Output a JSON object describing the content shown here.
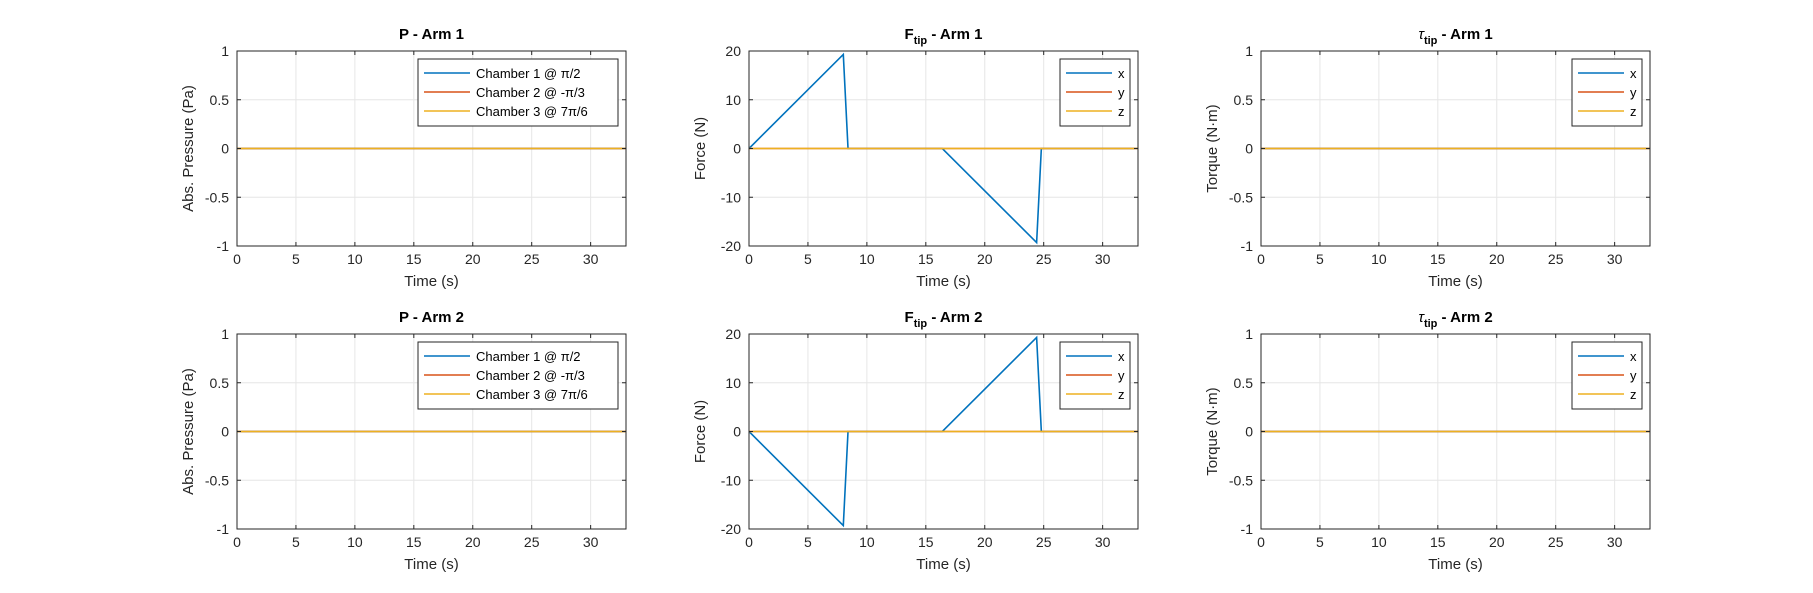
{
  "colors": {
    "x": "#0072BD",
    "y": "#D95319",
    "z": "#EDB120",
    "grid": "#e6e6e6",
    "axes": "#262626"
  },
  "chart_data": [
    {
      "type": "line",
      "title": "P - Arm 1",
      "title_main": "P",
      "title_sub": "",
      "title_suffix": " - Arm 1",
      "xlabel": "Time (s)",
      "ylabel": "Abs. Pressure (Pa)",
      "xlim": [
        0,
        33
      ],
      "ylim": [
        -1,
        1
      ],
      "xticks": [
        0,
        5,
        10,
        15,
        20,
        25,
        30
      ],
      "yticks": [
        -1,
        -0.5,
        0,
        0.5,
        1
      ],
      "yticklabels": [
        "-1",
        "-0.5",
        "0",
        "0.5",
        "1"
      ],
      "grid": true,
      "legend_position": "top-right",
      "series": [
        {
          "name": "Chamber 1 @ π/2",
          "color": "x",
          "x": [
            0,
            33
          ],
          "y": [
            0,
            0
          ]
        },
        {
          "name": "Chamber 2 @ -π/3",
          "color": "y",
          "x": [
            0,
            33
          ],
          "y": [
            0,
            0
          ]
        },
        {
          "name": "Chamber 3 @ 7π/6",
          "color": "z",
          "x": [
            0,
            33
          ],
          "y": [
            0,
            0
          ]
        }
      ]
    },
    {
      "type": "line",
      "title": "Ftip - Arm 1",
      "title_main": "F",
      "title_sub": "tip",
      "title_suffix": " - Arm 1",
      "xlabel": "Time (s)",
      "ylabel": "Force (N)",
      "xlim": [
        0,
        33
      ],
      "ylim": [
        -20,
        20
      ],
      "xticks": [
        0,
        5,
        10,
        15,
        20,
        25,
        30
      ],
      "yticks": [
        -20,
        -10,
        0,
        10,
        20
      ],
      "yticklabels": [
        "-20",
        "-10",
        "0",
        "10",
        "20"
      ],
      "grid": true,
      "legend_position": "top-right",
      "series": [
        {
          "name": "x",
          "color": "x",
          "x": [
            0,
            8,
            8.4,
            16.4,
            24.4,
            24.8,
            33
          ],
          "y": [
            0,
            19.3,
            0,
            0,
            -19.3,
            0,
            0
          ]
        },
        {
          "name": "y",
          "color": "y",
          "x": [
            0,
            33
          ],
          "y": [
            0,
            0
          ]
        },
        {
          "name": "z",
          "color": "z",
          "x": [
            0,
            33
          ],
          "y": [
            0,
            0
          ]
        }
      ]
    },
    {
      "type": "line",
      "title": "τtip - Arm 1",
      "title_main": "τ",
      "title_sub": "tip",
      "title_suffix": " - Arm 1",
      "xlabel": "Time (s)",
      "ylabel": "Torque (N·m)",
      "xlim": [
        0,
        33
      ],
      "ylim": [
        -1,
        1
      ],
      "xticks": [
        0,
        5,
        10,
        15,
        20,
        25,
        30
      ],
      "yticks": [
        -1,
        -0.5,
        0,
        0.5,
        1
      ],
      "yticklabels": [
        "-1",
        "-0.5",
        "0",
        "0.5",
        "1"
      ],
      "grid": true,
      "legend_position": "top-right",
      "series": [
        {
          "name": "x",
          "color": "x",
          "x": [
            0,
            33
          ],
          "y": [
            0,
            0
          ]
        },
        {
          "name": "y",
          "color": "y",
          "x": [
            0,
            33
          ],
          "y": [
            0,
            0
          ]
        },
        {
          "name": "z",
          "color": "z",
          "x": [
            0,
            33
          ],
          "y": [
            0,
            0
          ]
        }
      ]
    },
    {
      "type": "line",
      "title": "P - Arm 2",
      "title_main": "P",
      "title_sub": "",
      "title_suffix": " - Arm 2",
      "xlabel": "Time (s)",
      "ylabel": "Abs. Pressure (Pa)",
      "xlim": [
        0,
        33
      ],
      "ylim": [
        -1,
        1
      ],
      "xticks": [
        0,
        5,
        10,
        15,
        20,
        25,
        30
      ],
      "yticks": [
        -1,
        -0.5,
        0,
        0.5,
        1
      ],
      "yticklabels": [
        "-1",
        "-0.5",
        "0",
        "0.5",
        "1"
      ],
      "grid": true,
      "legend_position": "top-right",
      "series": [
        {
          "name": "Chamber 1 @ π/2",
          "color": "x",
          "x": [
            0,
            33
          ],
          "y": [
            0,
            0
          ]
        },
        {
          "name": "Chamber 2 @ -π/3",
          "color": "y",
          "x": [
            0,
            33
          ],
          "y": [
            0,
            0
          ]
        },
        {
          "name": "Chamber 3 @ 7π/6",
          "color": "z",
          "x": [
            0,
            33
          ],
          "y": [
            0,
            0
          ]
        }
      ]
    },
    {
      "type": "line",
      "title": "Ftip - Arm 2",
      "title_main": "F",
      "title_sub": "tip",
      "title_suffix": " - Arm 2",
      "xlabel": "Time (s)",
      "ylabel": "Force (N)",
      "xlim": [
        0,
        33
      ],
      "ylim": [
        -20,
        20
      ],
      "xticks": [
        0,
        5,
        10,
        15,
        20,
        25,
        30
      ],
      "yticks": [
        -20,
        -10,
        0,
        10,
        20
      ],
      "yticklabels": [
        "-20",
        "-10",
        "0",
        "10",
        "20"
      ],
      "grid": true,
      "legend_position": "top-right",
      "series": [
        {
          "name": "x",
          "color": "x",
          "x": [
            0,
            8,
            8.4,
            16.4,
            24.4,
            24.8,
            33
          ],
          "y": [
            0,
            -19.3,
            0,
            0,
            19.3,
            0,
            0
          ]
        },
        {
          "name": "y",
          "color": "y",
          "x": [
            0,
            33
          ],
          "y": [
            0,
            0
          ]
        },
        {
          "name": "z",
          "color": "z",
          "x": [
            0,
            33
          ],
          "y": [
            0,
            0
          ]
        }
      ]
    },
    {
      "type": "line",
      "title": "τtip - Arm 2",
      "title_main": "τ",
      "title_sub": "tip",
      "title_suffix": " - Arm 2",
      "xlabel": "Time (s)",
      "ylabel": "Torque (N·m)",
      "xlim": [
        0,
        33
      ],
      "ylim": [
        -1,
        1
      ],
      "xticks": [
        0,
        5,
        10,
        15,
        20,
        25,
        30
      ],
      "yticks": [
        -1,
        -0.5,
        0,
        0.5,
        1
      ],
      "yticklabels": [
        "-1",
        "-0.5",
        "0",
        "0.5",
        "1"
      ],
      "grid": true,
      "legend_position": "top-right",
      "series": [
        {
          "name": "x",
          "color": "x",
          "x": [
            0,
            33
          ],
          "y": [
            0,
            0
          ]
        },
        {
          "name": "y",
          "color": "y",
          "x": [
            0,
            33
          ],
          "y": [
            0,
            0
          ]
        },
        {
          "name": "z",
          "color": "z",
          "x": [
            0,
            33
          ],
          "y": [
            0,
            0
          ]
        }
      ]
    }
  ]
}
